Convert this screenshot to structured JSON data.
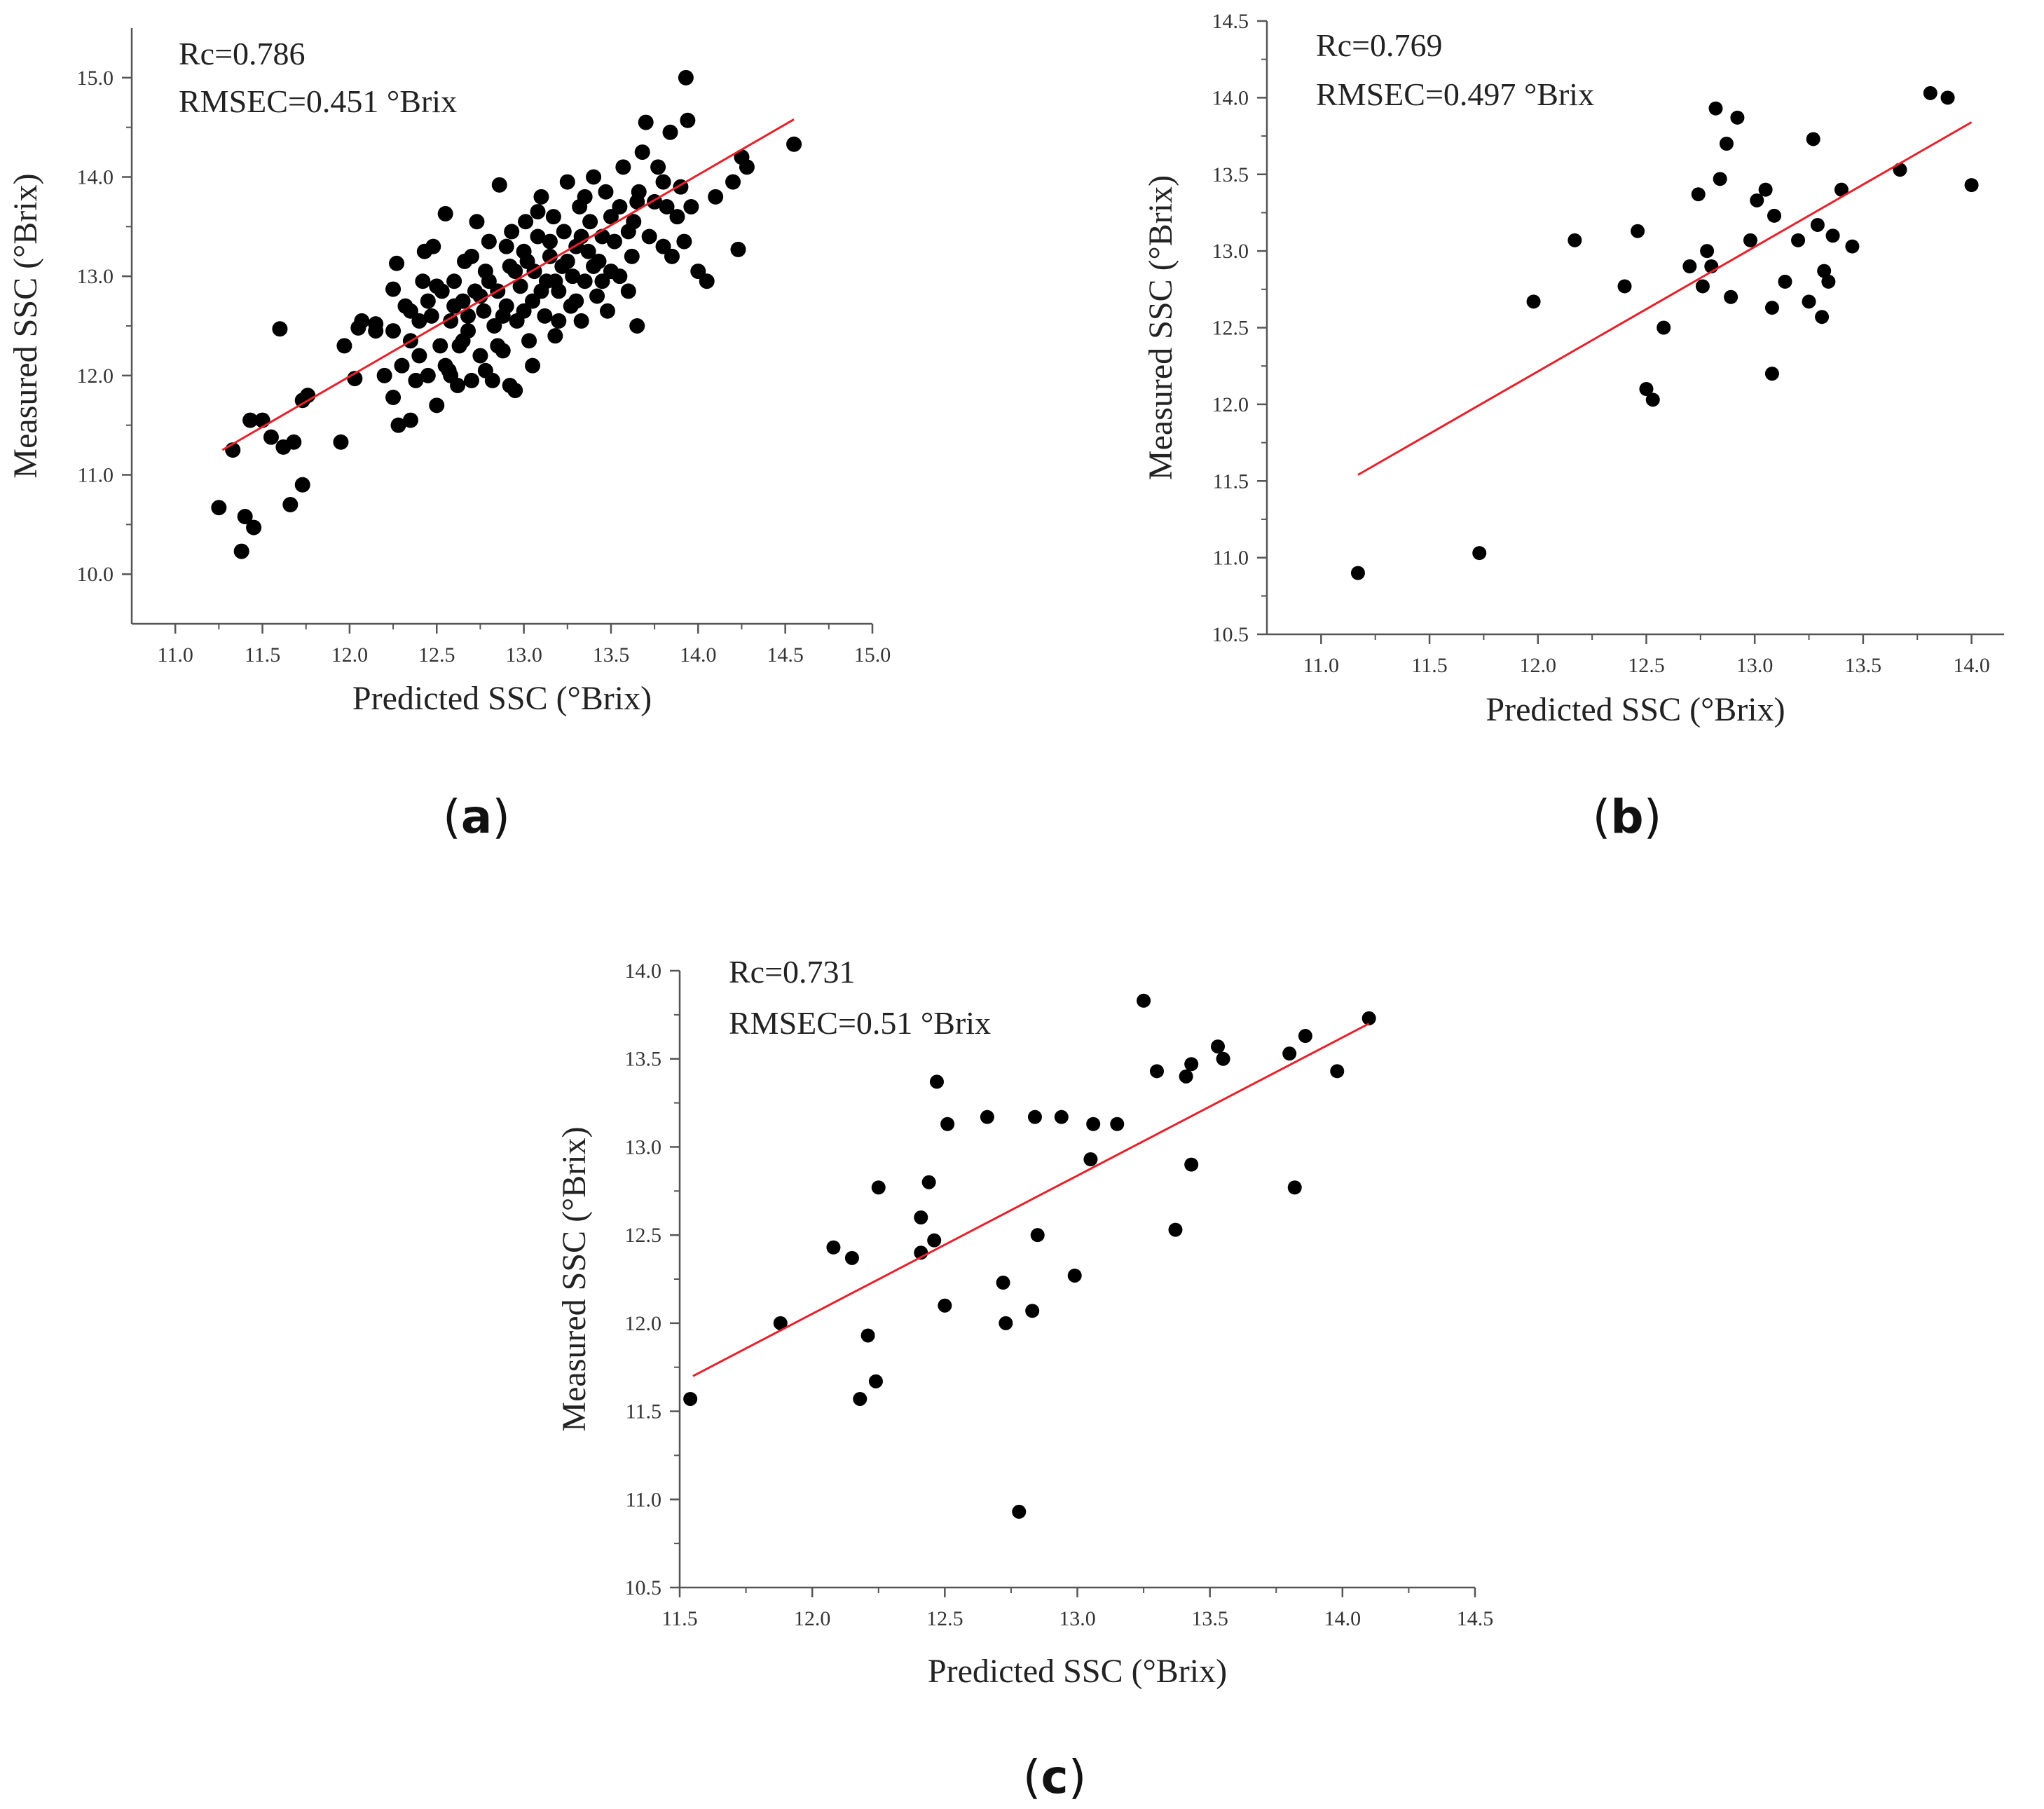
{
  "figure": {
    "panels": [
      {
        "id": "a",
        "label": "a",
        "stats": [
          "Rc=0.786",
          "RMSEC=0.451 °Brix"
        ]
      },
      {
        "id": "b",
        "label": "b",
        "stats": [
          "Rc=0.769",
          "RMSEC=0.497 °Brix"
        ]
      },
      {
        "id": "c",
        "label": "c",
        "stats": [
          "Rc=0.731",
          "RMSEC=0.51 °Brix"
        ]
      }
    ]
  },
  "colors": {
    "points": "#000000",
    "fit_line": "#e8202a",
    "axis": "#555555"
  },
  "chart_data": [
    {
      "type": "scatter",
      "panel": "a",
      "xlabel": "Predicted SSC (°Brix)",
      "ylabel": "Measured SSC (°Brix)",
      "xlim": [
        10.75,
        15.0
      ],
      "ylim": [
        9.5,
        15.5
      ],
      "xticks": [
        "11.0",
        "11.5",
        "12.0",
        "12.5",
        "13.0",
        "13.5",
        "14.0",
        "14.5",
        "15.0"
      ],
      "yticks": [
        "10.0",
        "11.0",
        "12.0",
        "13.0",
        "14.0",
        "15.0"
      ],
      "grid": false,
      "fit_line": {
        "x": [
          11.27,
          14.55
        ],
        "y": [
          11.25,
          14.58
        ]
      },
      "points": [
        [
          11.25,
          10.67
        ],
        [
          11.33,
          11.25
        ],
        [
          11.38,
          10.23
        ],
        [
          11.4,
          10.58
        ],
        [
          11.45,
          10.47
        ],
        [
          11.43,
          11.55
        ],
        [
          11.5,
          11.55
        ],
        [
          11.55,
          11.38
        ],
        [
          11.6,
          12.47
        ],
        [
          11.62,
          11.28
        ],
        [
          11.66,
          10.7
        ],
        [
          11.68,
          11.33
        ],
        [
          11.73,
          10.9
        ],
        [
          11.73,
          11.75
        ],
        [
          11.76,
          11.8
        ],
        [
          11.95,
          11.33
        ],
        [
          11.97,
          12.3
        ],
        [
          12.03,
          11.97
        ],
        [
          12.05,
          12.48
        ],
        [
          12.07,
          12.55
        ],
        [
          12.15,
          12.45
        ],
        [
          12.2,
          12.0
        ],
        [
          12.25,
          12.45
        ],
        [
          12.25,
          12.87
        ],
        [
          12.27,
          13.13
        ],
        [
          12.28,
          11.5
        ],
        [
          12.3,
          12.1
        ],
        [
          12.32,
          12.7
        ],
        [
          12.35,
          11.55
        ],
        [
          12.35,
          12.65
        ],
        [
          12.38,
          11.95
        ],
        [
          12.4,
          12.2
        ],
        [
          12.42,
          12.95
        ],
        [
          12.43,
          13.25
        ],
        [
          12.45,
          12.0
        ],
        [
          12.47,
          12.6
        ],
        [
          12.48,
          13.3
        ],
        [
          12.5,
          11.7
        ],
        [
          12.52,
          12.3
        ],
        [
          12.53,
          12.85
        ],
        [
          12.55,
          13.63
        ],
        [
          12.57,
          12.05
        ],
        [
          12.58,
          12.55
        ],
        [
          12.6,
          12.95
        ],
        [
          12.62,
          11.9
        ],
        [
          12.63,
          12.3
        ],
        [
          12.65,
          12.75
        ],
        [
          12.66,
          13.15
        ],
        [
          12.68,
          12.45
        ],
        [
          12.7,
          11.95
        ],
        [
          12.72,
          12.85
        ],
        [
          12.73,
          13.55
        ],
        [
          12.75,
          12.2
        ],
        [
          12.77,
          12.65
        ],
        [
          12.78,
          13.05
        ],
        [
          12.8,
          13.35
        ],
        [
          12.82,
          11.95
        ],
        [
          12.83,
          12.5
        ],
        [
          12.85,
          12.85
        ],
        [
          12.86,
          13.92
        ],
        [
          12.88,
          12.25
        ],
        [
          12.9,
          12.7
        ],
        [
          12.92,
          13.1
        ],
        [
          12.93,
          13.45
        ],
        [
          12.95,
          11.85
        ],
        [
          12.96,
          12.55
        ],
        [
          12.98,
          12.9
        ],
        [
          13.0,
          13.25
        ],
        [
          13.01,
          13.55
        ],
        [
          13.03,
          12.35
        ],
        [
          13.05,
          12.75
        ],
        [
          13.06,
          13.05
        ],
        [
          13.08,
          13.4
        ],
        [
          13.1,
          13.8
        ],
        [
          13.12,
          12.6
        ],
        [
          13.13,
          12.95
        ],
        [
          13.15,
          13.2
        ],
        [
          13.17,
          13.6
        ],
        [
          13.18,
          12.4
        ],
        [
          13.2,
          12.85
        ],
        [
          13.22,
          13.1
        ],
        [
          13.23,
          13.45
        ],
        [
          13.25,
          13.95
        ],
        [
          13.27,
          12.7
        ],
        [
          13.28,
          13.0
        ],
        [
          13.3,
          13.3
        ],
        [
          13.32,
          13.7
        ],
        [
          13.33,
          12.55
        ],
        [
          13.35,
          12.95
        ],
        [
          13.37,
          13.25
        ],
        [
          13.38,
          13.55
        ],
        [
          13.4,
          14.0
        ],
        [
          13.42,
          12.8
        ],
        [
          13.43,
          13.15
        ],
        [
          13.45,
          13.4
        ],
        [
          13.47,
          13.85
        ],
        [
          13.48,
          12.65
        ],
        [
          13.5,
          13.05
        ],
        [
          13.52,
          13.35
        ],
        [
          13.55,
          13.7
        ],
        [
          13.57,
          14.1
        ],
        [
          13.6,
          12.85
        ],
        [
          13.62,
          13.2
        ],
        [
          13.63,
          13.55
        ],
        [
          13.65,
          12.5
        ],
        [
          13.66,
          13.85
        ],
        [
          13.68,
          14.25
        ],
        [
          13.7,
          14.55
        ],
        [
          13.72,
          13.4
        ],
        [
          13.75,
          13.75
        ],
        [
          13.77,
          14.1
        ],
        [
          13.8,
          13.3
        ],
        [
          13.82,
          13.7
        ],
        [
          13.84,
          14.45
        ],
        [
          13.85,
          13.2
        ],
        [
          13.88,
          13.6
        ],
        [
          13.9,
          13.9
        ],
        [
          13.92,
          13.35
        ],
        [
          13.93,
          15.0
        ],
        [
          13.94,
          14.57
        ],
        [
          13.96,
          13.7
        ],
        [
          14.0,
          13.05
        ],
        [
          14.05,
          12.95
        ],
        [
          14.1,
          13.8
        ],
        [
          14.2,
          13.95
        ],
        [
          14.23,
          13.27
        ],
        [
          14.25,
          14.2
        ],
        [
          14.28,
          14.1
        ],
        [
          14.55,
          14.33
        ],
        [
          12.15,
          12.52
        ],
        [
          12.4,
          12.55
        ],
        [
          12.55,
          12.1
        ],
        [
          12.75,
          12.8
        ],
        [
          12.9,
          13.3
        ],
        [
          13.05,
          12.1
        ],
        [
          13.2,
          12.55
        ],
        [
          13.35,
          13.8
        ],
        [
          13.45,
          12.95
        ],
        [
          13.6,
          13.45
        ],
        [
          12.6,
          12.7
        ],
        [
          12.7,
          13.2
        ],
        [
          12.85,
          12.3
        ],
        [
          13.0,
          12.65
        ],
        [
          13.15,
          13.35
        ],
        [
          13.3,
          12.75
        ],
        [
          12.45,
          12.75
        ],
        [
          12.65,
          12.35
        ],
        [
          12.8,
          12.95
        ],
        [
          12.95,
          13.05
        ],
        [
          13.1,
          12.85
        ],
        [
          13.25,
          13.15
        ],
        [
          13.4,
          13.1
        ],
        [
          13.55,
          13.0
        ],
        [
          12.35,
          12.35
        ],
        [
          12.5,
          12.9
        ],
        [
          12.68,
          12.6
        ],
        [
          12.88,
          12.6
        ],
        [
          13.02,
          13.15
        ],
        [
          13.18,
          12.95
        ],
        [
          13.33,
          13.4
        ],
        [
          13.5,
          13.6
        ],
        [
          13.65,
          13.75
        ],
        [
          13.8,
          13.95
        ],
        [
          12.25,
          11.78
        ],
        [
          12.58,
          12.0
        ],
        [
          12.78,
          12.05
        ],
        [
          12.92,
          11.9
        ],
        [
          13.08,
          13.65
        ]
      ]
    },
    {
      "type": "scatter",
      "panel": "b",
      "xlabel": "Predicted SSC (°Brix)",
      "ylabel": "Measured SSC (°Brix)",
      "xlim": [
        10.75,
        14.15
      ],
      "ylim": [
        10.5,
        14.5
      ],
      "xticks": [
        "11.0",
        "11.5",
        "12.0",
        "12.5",
        "13.0",
        "13.5",
        "14.0"
      ],
      "yticks": [
        "10.5",
        "11.0",
        "11.5",
        "12.0",
        "12.5",
        "13.0",
        "13.5",
        "14.0",
        "14.5"
      ],
      "grid": false,
      "fit_line": {
        "x": [
          11.17,
          14.0
        ],
        "y": [
          11.54,
          13.84
        ]
      },
      "points": [
        [
          11.17,
          10.9
        ],
        [
          11.73,
          11.03
        ],
        [
          11.98,
          12.67
        ],
        [
          12.17,
          13.07
        ],
        [
          12.4,
          12.77
        ],
        [
          12.46,
          13.13
        ],
        [
          12.5,
          12.1
        ],
        [
          12.53,
          12.03
        ],
        [
          12.58,
          12.5
        ],
        [
          12.7,
          12.9
        ],
        [
          12.74,
          13.37
        ],
        [
          12.76,
          12.77
        ],
        [
          12.78,
          13.0
        ],
        [
          12.8,
          12.9
        ],
        [
          12.82,
          13.93
        ],
        [
          12.84,
          13.47
        ],
        [
          12.87,
          13.7
        ],
        [
          12.89,
          12.7
        ],
        [
          12.92,
          13.87
        ],
        [
          12.98,
          13.07
        ],
        [
          13.01,
          13.33
        ],
        [
          13.05,
          13.4
        ],
        [
          13.08,
          12.63
        ],
        [
          13.08,
          12.2
        ],
        [
          13.09,
          13.23
        ],
        [
          13.14,
          12.8
        ],
        [
          13.2,
          13.07
        ],
        [
          13.25,
          12.67
        ],
        [
          13.27,
          13.73
        ],
        [
          13.29,
          13.17
        ],
        [
          13.31,
          12.57
        ],
        [
          13.32,
          12.87
        ],
        [
          13.34,
          12.8
        ],
        [
          13.36,
          13.1
        ],
        [
          13.4,
          13.4
        ],
        [
          13.45,
          13.03
        ],
        [
          13.67,
          13.53
        ],
        [
          13.81,
          14.03
        ],
        [
          13.89,
          14.0
        ],
        [
          14.0,
          13.43
        ]
      ]
    },
    {
      "type": "scatter",
      "panel": "c",
      "xlabel": "Predicted SSC (°Brix)",
      "ylabel": "Measured SSC (°Brix)",
      "xlim": [
        11.5,
        14.5
      ],
      "ylim": [
        10.5,
        14.0
      ],
      "xticks": [
        "11.5",
        "12.0",
        "12.5",
        "13.0",
        "13.5",
        "14.0",
        "14.5"
      ],
      "yticks": [
        "10.5",
        "11.0",
        "11.5",
        "12.0",
        "12.5",
        "13.0",
        "13.5",
        "14.0"
      ],
      "grid": false,
      "fit_line": {
        "x": [
          11.55,
          14.1
        ],
        "y": [
          11.7,
          13.7
        ]
      },
      "points": [
        [
          11.54,
          11.57
        ],
        [
          11.88,
          12.0
        ],
        [
          12.08,
          12.43
        ],
        [
          12.15,
          12.37
        ],
        [
          12.18,
          11.57
        ],
        [
          12.21,
          11.93
        ],
        [
          12.24,
          11.67
        ],
        [
          12.25,
          12.77
        ],
        [
          12.41,
          12.6
        ],
        [
          12.41,
          12.4
        ],
        [
          12.44,
          12.8
        ],
        [
          12.46,
          12.47
        ],
        [
          12.47,
          13.37
        ],
        [
          12.5,
          12.1
        ],
        [
          12.51,
          13.13
        ],
        [
          12.66,
          13.17
        ],
        [
          12.72,
          12.23
        ],
        [
          12.73,
          12.0
        ],
        [
          12.78,
          10.93
        ],
        [
          12.83,
          12.07
        ],
        [
          12.84,
          13.17
        ],
        [
          12.85,
          12.5
        ],
        [
          12.94,
          13.17
        ],
        [
          12.99,
          12.27
        ],
        [
          13.05,
          12.93
        ],
        [
          13.06,
          13.13
        ],
        [
          13.15,
          13.13
        ],
        [
          13.25,
          13.83
        ],
        [
          13.3,
          13.43
        ],
        [
          13.37,
          12.53
        ],
        [
          13.41,
          13.4
        ],
        [
          13.43,
          13.47
        ],
        [
          13.43,
          12.9
        ],
        [
          13.53,
          13.57
        ],
        [
          13.55,
          13.5
        ],
        [
          13.8,
          13.53
        ],
        [
          13.82,
          12.77
        ],
        [
          13.86,
          13.63
        ],
        [
          13.98,
          13.43
        ],
        [
          14.1,
          13.73
        ]
      ]
    }
  ]
}
